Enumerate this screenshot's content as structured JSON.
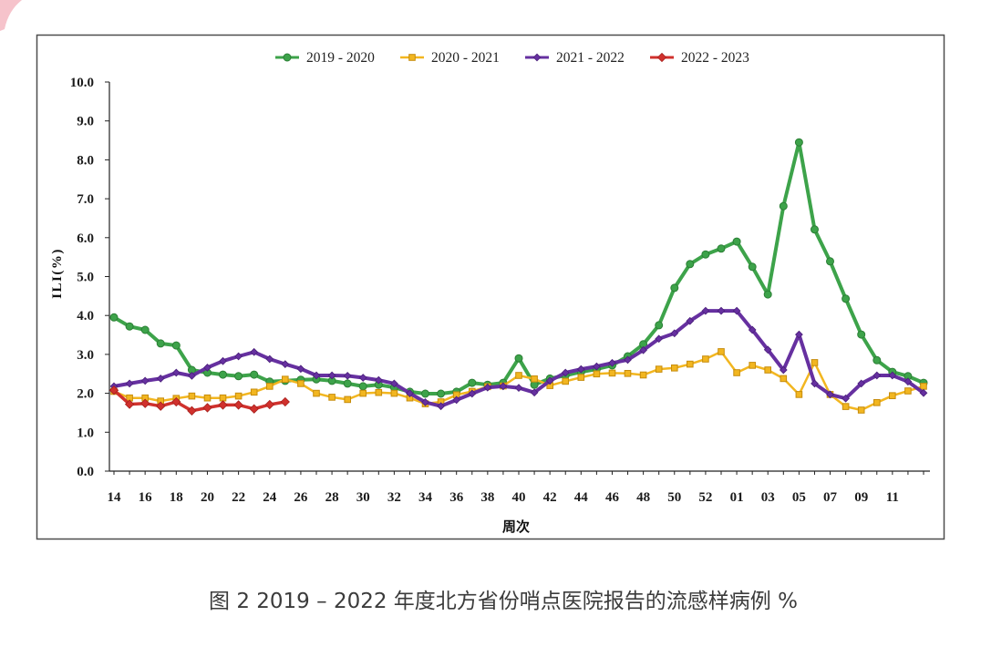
{
  "chart_data": {
    "type": "line",
    "xlabel": "周次",
    "ylabel": "ILI(%)",
    "ylim": [
      0,
      10
    ],
    "grid": false,
    "yticks": [
      "0.0",
      "1.0",
      "2.0",
      "3.0",
      "4.0",
      "5.0",
      "6.0",
      "7.0",
      "8.0",
      "9.0",
      "10.0"
    ],
    "xtick_labels": [
      "14",
      "16",
      "18",
      "20",
      "22",
      "24",
      "26",
      "28",
      "30",
      "32",
      "34",
      "36",
      "38",
      "40",
      "42",
      "44",
      "46",
      "48",
      "50",
      "52",
      "01",
      "03",
      "05",
      "07",
      "09",
      "11"
    ],
    "series": [
      {
        "name": "2019 - 2020",
        "color": "#3da34a",
        "marker_edge": "#2b7f35",
        "values": [
          3.95,
          3.72,
          3.63,
          3.28,
          3.23,
          2.6,
          2.53,
          2.48,
          2.44,
          2.48,
          2.3,
          2.32,
          2.35,
          2.36,
          2.32,
          2.25,
          2.18,
          2.22,
          2.15,
          2.04,
          1.99,
          1.99,
          2.04,
          2.27,
          2.22,
          2.27,
          2.9,
          2.22,
          2.38,
          2.46,
          2.55,
          2.62,
          2.72,
          2.95,
          3.26,
          3.75,
          4.71,
          5.32,
          5.57,
          5.72,
          5.9,
          5.25,
          4.54,
          6.81,
          8.45,
          6.21,
          5.39,
          4.43,
          3.51,
          2.85,
          2.55,
          2.44,
          2.27
        ]
      },
      {
        "name": "2020 - 2021",
        "color": "#f2b620",
        "marker_edge": "#c68c0c",
        "values": [
          2.05,
          1.88,
          1.88,
          1.8,
          1.87,
          1.93,
          1.88,
          1.88,
          1.93,
          2.03,
          2.18,
          2.36,
          2.25,
          2.0,
          1.9,
          1.84,
          2.0,
          2.02,
          2.0,
          1.88,
          1.73,
          1.78,
          1.96,
          2.05,
          2.17,
          2.19,
          2.46,
          2.37,
          2.2,
          2.31,
          2.41,
          2.5,
          2.52,
          2.51,
          2.47,
          2.62,
          2.65,
          2.75,
          2.88,
          3.07,
          2.53,
          2.72,
          2.6,
          2.38,
          1.97,
          2.79,
          1.97,
          1.66,
          1.57,
          1.76,
          1.94,
          2.06,
          2.18
        ]
      },
      {
        "name": "2021 - 2022",
        "color": "#6630a0",
        "marker_edge": "#4a1f7a",
        "values": [
          2.18,
          2.25,
          2.32,
          2.38,
          2.53,
          2.45,
          2.66,
          2.83,
          2.95,
          3.06,
          2.88,
          2.75,
          2.63,
          2.46,
          2.46,
          2.45,
          2.4,
          2.34,
          2.25,
          2.0,
          1.77,
          1.67,
          1.83,
          1.99,
          2.15,
          2.18,
          2.14,
          2.02,
          2.32,
          2.53,
          2.62,
          2.69,
          2.78,
          2.86,
          3.11,
          3.4,
          3.54,
          3.86,
          4.12,
          4.12,
          4.12,
          3.63,
          3.12,
          2.6,
          3.51,
          2.25,
          1.97,
          1.87,
          2.25,
          2.46,
          2.46,
          2.3,
          2.01
        ]
      },
      {
        "name": "2022 - 2023",
        "color": "#d0312d",
        "marker_edge": "#a51f1c",
        "values": [
          2.08,
          1.72,
          1.74,
          1.67,
          1.78,
          1.55,
          1.63,
          1.7,
          1.7,
          1.6,
          1.71,
          1.78
        ]
      }
    ]
  },
  "caption": "图 2 2019 – 2022 年度北方省份哨点医院报告的流感样病例 %"
}
